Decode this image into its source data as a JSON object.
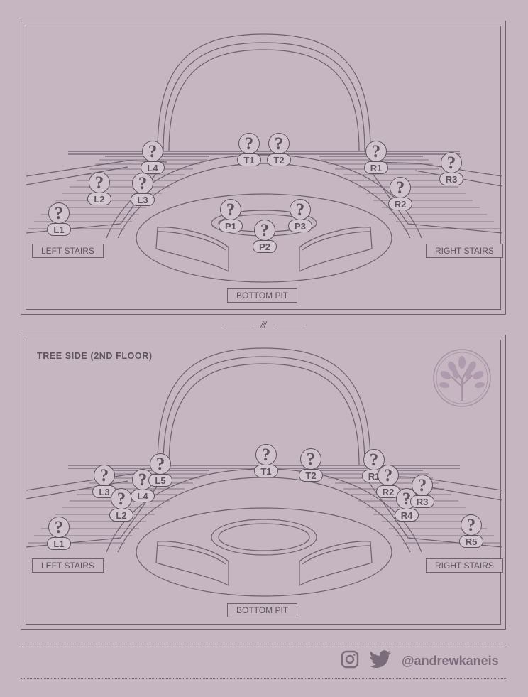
{
  "panel_top": {
    "labels": {
      "left_stairs": "LEFT STAIRS",
      "right_stairs": "RIGHT STAIRS",
      "bottom_pit": "BOTTOM PIT"
    },
    "markers": {
      "L1": "L1",
      "L2": "L2",
      "L3": "L3",
      "L4": "L4",
      "T1": "T1",
      "T2": "T2",
      "R1": "R1",
      "R2": "R2",
      "R3": "R3",
      "P1": "P1",
      "P2": "P2",
      "P3": "P3"
    }
  },
  "divider_text": "///",
  "panel_bottom": {
    "title": "TREE SIDE (2ND FLOOR)",
    "labels": {
      "left_stairs": "LEFT STAIRS",
      "right_stairs": "RIGHT STAIRS",
      "bottom_pit": "BOTTOM PIT"
    },
    "markers": {
      "L1": "L1",
      "L2": "L2",
      "L3": "L3",
      "L4": "L4",
      "L5": "L5",
      "T1": "T1",
      "T2": "T2",
      "R1": "R1",
      "R2": "R2",
      "R3": "R3",
      "R4": "R4",
      "R5": "R5"
    }
  },
  "marker_symbol": "?",
  "footer": {
    "handle": "@andrewkaneis",
    "icons": [
      "instagram-icon",
      "twitter-icon"
    ]
  },
  "colors": {
    "background": "#c5b6c1",
    "ink": "#5f5360",
    "handle": "#7b6c7b"
  }
}
